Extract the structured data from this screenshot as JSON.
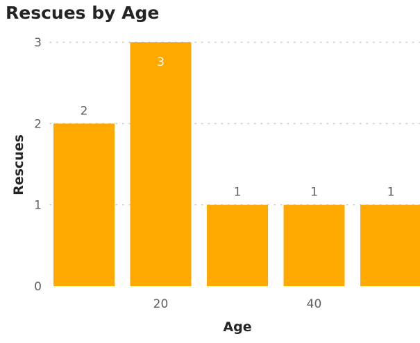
{
  "chart_data": {
    "type": "bar",
    "title": "Rescues by Age",
    "xlabel": "Age",
    "ylabel": "Rescues",
    "x_tick_labels": [
      {
        "value": 20,
        "label": "20"
      },
      {
        "value": 40,
        "label": "40"
      }
    ],
    "y_ticks": [
      0,
      1,
      2,
      3
    ],
    "ylim": [
      0,
      3
    ],
    "grid": true,
    "bar_color": "#FFA800",
    "bars": [
      {
        "x": 10,
        "value": 2,
        "label": "2"
      },
      {
        "x": 20,
        "value": 3,
        "label": "3"
      },
      {
        "x": 30,
        "value": 1,
        "label": "1"
      },
      {
        "x": 40,
        "value": 1,
        "label": "1"
      },
      {
        "x": 50,
        "value": 1,
        "label": "1"
      }
    ]
  }
}
